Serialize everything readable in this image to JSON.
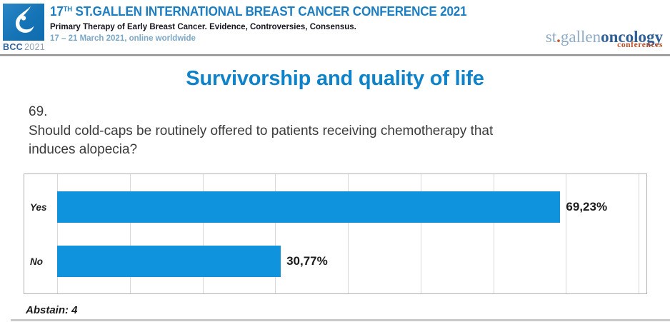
{
  "header": {
    "logo_badge": {
      "label_bcc": "BCC",
      "label_year": "2021"
    },
    "conference_title": {
      "number": "17",
      "ordinal": "TH",
      "rest": " ST.GALLEN INTERNATIONAL BREAST CANCER CONFERENCE 2021"
    },
    "subtitle": "Primary Therapy of Early Breast Cancer. Evidence, Controversies, Consensus.",
    "dates": "17 – 21 March 2021, online worldwide",
    "org_logo": {
      "st": "st",
      "dot": ".",
      "gallen": "gallen",
      "oncology": "oncology",
      "conferences": "conferences"
    }
  },
  "slide": {
    "section_title": "Survivorship and quality of life",
    "question_number": "69.",
    "question_lines": [
      "Should cold-caps be routinely offered to patients receiving chemotherapy that",
      "induces alopecia?"
    ],
    "abstain_note": "Abstain: 4"
  },
  "chart_data": {
    "type": "bar",
    "orientation": "horizontal",
    "title": "Should cold-caps be routinely offered to patients receiving chemotherapy that induces alopecia?",
    "categories": [
      "Yes",
      "No"
    ],
    "values": [
      69.23,
      30.77
    ],
    "value_labels": [
      "69,23%",
      "30,77%"
    ],
    "xlim": [
      0,
      80
    ],
    "gridline_step": 10,
    "grid": true,
    "legend": false,
    "xlabel": "",
    "ylabel": "",
    "bar_color": "#0e93dc",
    "abstain": 4
  },
  "colors": {
    "header_title_blue": "#1d7dc1",
    "section_title_blue": "#0f83c9",
    "bar_blue": "#0e93dc",
    "dates_blue": "#7ba7c7",
    "logo_light_blue": "#90abc5",
    "logo_dark_blue": "#305f96",
    "logo_orange": "#b94d27",
    "text_dark": "#3b3b3b"
  }
}
